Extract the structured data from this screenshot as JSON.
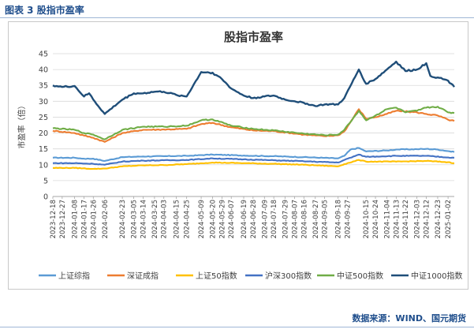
{
  "figure": {
    "caption": "图表 3 股指市盈率",
    "source": "数据来源：WIND、国元期货"
  },
  "colors": {
    "caption": "#1f4e8c",
    "grid": "#d9d9d9",
    "axis_text": "#404040"
  },
  "chart_data": {
    "type": "line",
    "title": "股指市盈率",
    "xlabel": "",
    "ylabel": "市盈率（倍）",
    "ylim": [
      0,
      45
    ],
    "yticks": [
      0,
      5,
      10,
      15,
      20,
      25,
      30,
      35,
      40,
      45
    ],
    "grid": "horizontal",
    "legend_position": "bottom",
    "x_start": "2023-12-18",
    "x_end": "2025-01-08",
    "x_tick_labels": [
      "2023-12-18",
      "2023-12-27",
      "2024-01-08",
      "2024-01-17",
      "2024-01-26",
      "2024-02-06",
      "2024-02-23",
      "2024-03-05",
      "2024-03-14",
      "2024-03-25",
      "2024-04-03",
      "2024-04-15",
      "2024-04-25",
      "2024-05-09",
      "2024-05-20",
      "2024-05-29",
      "2024-06-07",
      "2024-06-19",
      "2024-06-28",
      "2024-07-09",
      "2024-07-18",
      "2024-07-29",
      "2024-08-07",
      "2024-08-16",
      "2024-08-27",
      "2024-09-05",
      "2024-09-18",
      "2024-09-27",
      "2024-10-15",
      "2024-10-24",
      "2024-11-04",
      "2024-11-13",
      "2024-11-22",
      "2024-12-03",
      "2024-12-12",
      "2024-12-23",
      "2025-01-02"
    ],
    "series": [
      {
        "name": "上证综指",
        "color": "#5b9bd5",
        "points": [
          [
            "2023-12-18",
            12.2
          ],
          [
            "2024-01-08",
            12.2
          ],
          [
            "2024-01-17",
            11.9
          ],
          [
            "2024-01-26",
            11.9
          ],
          [
            "2024-02-06",
            11.2
          ],
          [
            "2024-02-23",
            12.4
          ],
          [
            "2024-03-14",
            12.6
          ],
          [
            "2024-04-03",
            12.7
          ],
          [
            "2024-04-25",
            12.8
          ],
          [
            "2024-05-20",
            13.2
          ],
          [
            "2024-06-19",
            12.9
          ],
          [
            "2024-07-18",
            12.7
          ],
          [
            "2024-08-16",
            12.4
          ],
          [
            "2024-09-18",
            12.0
          ],
          [
            "2024-09-24",
            12.8
          ],
          [
            "2024-09-30",
            14.8
          ],
          [
            "2024-10-08",
            15.3
          ],
          [
            "2024-10-15",
            14.2
          ],
          [
            "2024-11-04",
            14.5
          ],
          [
            "2024-11-13",
            14.8
          ],
          [
            "2024-12-03",
            14.9
          ],
          [
            "2024-12-12",
            15.0
          ],
          [
            "2024-12-23",
            14.8
          ],
          [
            "2025-01-02",
            14.3
          ],
          [
            "2025-01-08",
            14.0
          ]
        ]
      },
      {
        "name": "深证成指",
        "color": "#ed7d31",
        "points": [
          [
            "2023-12-18",
            20.7
          ],
          [
            "2024-01-08",
            20.0
          ],
          [
            "2024-01-17",
            19.2
          ],
          [
            "2024-01-26",
            18.5
          ],
          [
            "2024-02-06",
            17.2
          ],
          [
            "2024-02-23",
            20.0
          ],
          [
            "2024-03-14",
            21.0
          ],
          [
            "2024-04-03",
            21.1
          ],
          [
            "2024-04-25",
            21.3
          ],
          [
            "2024-05-09",
            22.8
          ],
          [
            "2024-05-20",
            23.2
          ],
          [
            "2024-06-07",
            21.8
          ],
          [
            "2024-06-28",
            20.8
          ],
          [
            "2024-07-18",
            20.6
          ],
          [
            "2024-08-16",
            19.5
          ],
          [
            "2024-09-05",
            19.0
          ],
          [
            "2024-09-18",
            19.3
          ],
          [
            "2024-09-24",
            20.5
          ],
          [
            "2024-10-08",
            27.5
          ],
          [
            "2024-10-15",
            24.5
          ],
          [
            "2024-10-24",
            25.0
          ],
          [
            "2024-11-04",
            26.0
          ],
          [
            "2024-11-13",
            27.0
          ],
          [
            "2024-12-03",
            26.5
          ],
          [
            "2024-12-12",
            26.0
          ],
          [
            "2024-12-23",
            25.5
          ],
          [
            "2025-01-02",
            24.2
          ],
          [
            "2025-01-08",
            23.8
          ]
        ]
      },
      {
        "name": "上证50指数",
        "color": "#ffc000",
        "points": [
          [
            "2023-12-18",
            9.0
          ],
          [
            "2024-01-08",
            9.0
          ],
          [
            "2024-01-26",
            8.7
          ],
          [
            "2024-02-06",
            8.8
          ],
          [
            "2024-02-23",
            9.5
          ],
          [
            "2024-03-14",
            9.8
          ],
          [
            "2024-04-03",
            9.9
          ],
          [
            "2024-04-25",
            10.2
          ],
          [
            "2024-05-20",
            10.7
          ],
          [
            "2024-06-19",
            10.5
          ],
          [
            "2024-07-18",
            10.3
          ],
          [
            "2024-08-16",
            10.0
          ],
          [
            "2024-09-18",
            9.5
          ],
          [
            "2024-09-24",
            10.2
          ],
          [
            "2024-10-08",
            11.5
          ],
          [
            "2024-10-15",
            11.0
          ],
          [
            "2024-11-13",
            11.0
          ],
          [
            "2024-12-12",
            11.2
          ],
          [
            "2025-01-02",
            10.8
          ],
          [
            "2025-01-08",
            10.5
          ]
        ]
      },
      {
        "name": "沪深300指数",
        "color": "#4472c4",
        "points": [
          [
            "2023-12-18",
            10.5
          ],
          [
            "2024-01-08",
            10.5
          ],
          [
            "2024-01-26",
            10.3
          ],
          [
            "2024-02-06",
            10.0
          ],
          [
            "2024-02-23",
            11.0
          ],
          [
            "2024-03-14",
            11.3
          ],
          [
            "2024-04-03",
            11.4
          ],
          [
            "2024-04-25",
            11.5
          ],
          [
            "2024-05-20",
            12.0
          ],
          [
            "2024-06-19",
            11.7
          ],
          [
            "2024-07-18",
            11.4
          ],
          [
            "2024-08-16",
            11.1
          ],
          [
            "2024-09-18",
            10.7
          ],
          [
            "2024-09-24",
            11.5
          ],
          [
            "2024-10-08",
            13.2
          ],
          [
            "2024-10-15",
            12.5
          ],
          [
            "2024-11-13",
            12.8
          ],
          [
            "2024-12-12",
            12.8
          ],
          [
            "2025-01-02",
            12.3
          ],
          [
            "2025-01-08",
            12.2
          ]
        ]
      },
      {
        "name": "中证500指数",
        "color": "#70ad47",
        "points": [
          [
            "2023-12-18",
            21.5
          ],
          [
            "2024-01-08",
            21.0
          ],
          [
            "2024-01-17",
            20.0
          ],
          [
            "2024-01-26",
            19.5
          ],
          [
            "2024-02-06",
            18.0
          ],
          [
            "2024-02-23",
            21.0
          ],
          [
            "2024-03-14",
            22.0
          ],
          [
            "2024-04-03",
            22.0
          ],
          [
            "2024-04-25",
            22.3
          ],
          [
            "2024-05-09",
            24.0
          ],
          [
            "2024-05-20",
            24.3
          ],
          [
            "2024-06-07",
            22.3
          ],
          [
            "2024-06-28",
            21.3
          ],
          [
            "2024-07-18",
            20.8
          ],
          [
            "2024-08-16",
            19.8
          ],
          [
            "2024-09-05",
            19.3
          ],
          [
            "2024-09-18",
            19.5
          ],
          [
            "2024-09-24",
            21.0
          ],
          [
            "2024-10-08",
            27.0
          ],
          [
            "2024-10-15",
            24.0
          ],
          [
            "2024-10-24",
            25.5
          ],
          [
            "2024-11-04",
            27.5
          ],
          [
            "2024-11-13",
            28.0
          ],
          [
            "2024-11-22",
            26.5
          ],
          [
            "2024-12-03",
            27.0
          ],
          [
            "2024-12-12",
            28.0
          ],
          [
            "2024-12-23",
            28.3
          ],
          [
            "2025-01-02",
            26.5
          ],
          [
            "2025-01-08",
            26.3
          ]
        ]
      },
      {
        "name": "中证1000指数",
        "color": "#1f4e79",
        "points": [
          [
            "2023-12-18",
            35.0
          ],
          [
            "2023-12-27",
            34.5
          ],
          [
            "2024-01-08",
            34.8
          ],
          [
            "2024-01-17",
            31.5
          ],
          [
            "2024-01-22",
            32.5
          ],
          [
            "2024-01-26",
            30.5
          ],
          [
            "2024-02-06",
            26.0
          ],
          [
            "2024-02-23",
            30.5
          ],
          [
            "2024-03-05",
            32.5
          ],
          [
            "2024-03-14",
            32.5
          ],
          [
            "2024-03-25",
            33.0
          ],
          [
            "2024-04-03",
            33.0
          ],
          [
            "2024-04-15",
            32.0
          ],
          [
            "2024-04-25",
            31.5
          ],
          [
            "2024-05-09",
            39.2
          ],
          [
            "2024-05-20",
            39.0
          ],
          [
            "2024-05-29",
            37.0
          ],
          [
            "2024-06-07",
            34.0
          ],
          [
            "2024-06-19",
            31.8
          ],
          [
            "2024-06-28",
            31.0
          ],
          [
            "2024-07-09",
            31.5
          ],
          [
            "2024-07-18",
            31.8
          ],
          [
            "2024-07-29",
            30.5
          ],
          [
            "2024-08-07",
            30.0
          ],
          [
            "2024-08-16",
            29.5
          ],
          [
            "2024-08-27",
            28.5
          ],
          [
            "2024-09-05",
            29.0
          ],
          [
            "2024-09-18",
            29.0
          ],
          [
            "2024-09-24",
            31.0
          ],
          [
            "2024-10-08",
            40.0
          ],
          [
            "2024-10-15",
            35.5
          ],
          [
            "2024-10-24",
            37.0
          ],
          [
            "2024-11-04",
            40.0
          ],
          [
            "2024-11-13",
            42.5
          ],
          [
            "2024-11-22",
            39.5
          ],
          [
            "2024-12-03",
            40.0
          ],
          [
            "2024-12-12",
            42.0
          ],
          [
            "2024-12-16",
            38.0
          ],
          [
            "2024-12-23",
            37.5
          ],
          [
            "2025-01-02",
            36.5
          ],
          [
            "2025-01-08",
            34.5
          ]
        ]
      }
    ]
  }
}
